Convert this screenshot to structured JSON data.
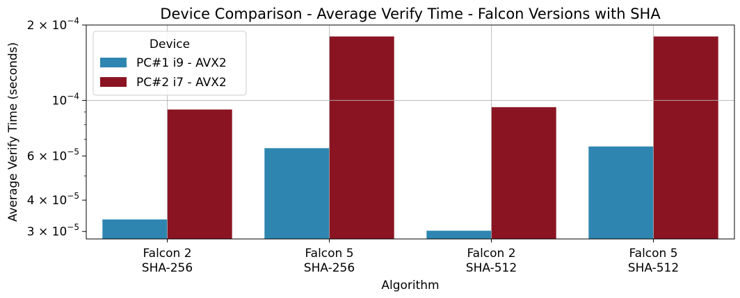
{
  "chart_data": {
    "type": "bar",
    "title": "Device Comparison - Average Verify Time - Falcon Versions with SHA",
    "xlabel": "Algorithm",
    "ylabel": "Average Verify Time (seconds)",
    "yscale": "log",
    "ylim": [
      2.8e-05,
      0.0002
    ],
    "grid": true,
    "legend": {
      "title": "Device",
      "placement": "top-left"
    },
    "categories": [
      [
        "Falcon 2",
        "SHA-256"
      ],
      [
        "Falcon 5",
        "SHA-256"
      ],
      [
        "Falcon 2",
        "SHA-512"
      ],
      [
        "Falcon 5",
        "SHA-512"
      ]
    ],
    "yticks": [
      {
        "value": 0.0002,
        "mant": "2",
        "exp": "−4"
      },
      {
        "value": 0.0001,
        "mant": "",
        "exp": "−4"
      },
      {
        "value": 6e-05,
        "mant": "6",
        "exp": "−5"
      },
      {
        "value": 4e-05,
        "mant": "4",
        "exp": "−5"
      },
      {
        "value": 3e-05,
        "mant": "3",
        "exp": "−5"
      }
    ],
    "series": [
      {
        "name": "PC#1 i9 - AVX2",
        "color": "#2e86b0",
        "values": [
          3.35e-05,
          6.45e-05,
          3.02e-05,
          6.55e-05
        ]
      },
      {
        "name": "PC#2 i7 - AVX2",
        "color": "#8b1423",
        "values": [
          9.2e-05,
          0.00018,
          9.4e-05,
          0.00018
        ]
      }
    ]
  }
}
